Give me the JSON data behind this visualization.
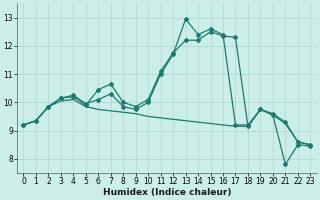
{
  "xlabel": "Humidex (Indice chaleur)",
  "bg_color": "#cceee8",
  "line_color": "#1a7a6e",
  "xlim": [
    -0.5,
    23.5
  ],
  "ylim": [
    7.5,
    13.5
  ],
  "xticks": [
    0,
    1,
    2,
    3,
    4,
    5,
    6,
    7,
    8,
    9,
    10,
    11,
    12,
    13,
    14,
    15,
    16,
    17,
    18,
    19,
    20,
    21,
    22,
    23
  ],
  "yticks": [
    8,
    9,
    10,
    11,
    12,
    13
  ],
  "series1_x": [
    0,
    1,
    2,
    3,
    4,
    5,
    6,
    7,
    8,
    9,
    10,
    11,
    12,
    13,
    14,
    15,
    16,
    17,
    18,
    19,
    20,
    21,
    22,
    23
  ],
  "series1_y": [
    9.2,
    9.35,
    9.85,
    10.15,
    10.2,
    9.9,
    10.45,
    10.65,
    10.0,
    9.85,
    10.1,
    11.1,
    11.75,
    12.2,
    12.2,
    12.5,
    12.35,
    12.3,
    9.15,
    9.75,
    9.6,
    9.3,
    8.6,
    8.5
  ],
  "series2_x": [
    0,
    1,
    2,
    3,
    4,
    5,
    6,
    7,
    8,
    9,
    10,
    11,
    12,
    13,
    14,
    15,
    16,
    17,
    18,
    19,
    20,
    21,
    22,
    23
  ],
  "series2_y": [
    9.2,
    9.35,
    9.85,
    10.05,
    10.1,
    9.85,
    9.75,
    9.7,
    9.65,
    9.6,
    9.5,
    9.45,
    9.4,
    9.35,
    9.3,
    9.25,
    9.2,
    9.15,
    9.15,
    9.75,
    9.55,
    9.25,
    8.6,
    8.5
  ],
  "series3_x": [
    0,
    1,
    2,
    3,
    4,
    5,
    6,
    7,
    8,
    9,
    10,
    11,
    12,
    13,
    14,
    15,
    16,
    17,
    18,
    19,
    20,
    21,
    22,
    23
  ],
  "series3_y": [
    9.2,
    9.35,
    9.85,
    10.15,
    10.25,
    9.95,
    10.1,
    10.3,
    9.85,
    9.75,
    10.0,
    11.0,
    11.7,
    12.95,
    12.4,
    12.6,
    12.4,
    9.2,
    9.2,
    9.75,
    9.55,
    7.8,
    8.5,
    8.45
  ],
  "grid_color": "#aad4cc",
  "marker": "D",
  "marker_size": 2.0,
  "line_width": 0.9,
  "tick_fontsize": 5.5,
  "xlabel_fontsize": 6.5
}
